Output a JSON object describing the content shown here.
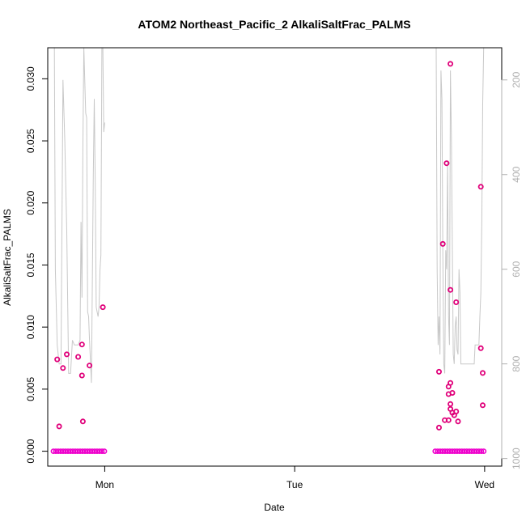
{
  "chart_data": {
    "type": "scatter",
    "title": "ATOM2 Northeast_Pacific_2 AlkaliSaltFrac_PALMS",
    "xlabel": "Date",
    "ylabel": "AlkaliSaltFrac_PALMS",
    "x_axis_unit": "days",
    "xlim": [
      -0.3,
      2.09
    ],
    "ylim": [
      -0.0012,
      0.0325
    ],
    "x_ticks": [
      {
        "value": 0,
        "label": "Mon"
      },
      {
        "value": 1,
        "label": "Tue"
      },
      {
        "value": 2,
        "label": "Wed"
      }
    ],
    "y_ticks": [
      0.0,
      0.005,
      0.01,
      0.015,
      0.02,
      0.025,
      0.03
    ],
    "y_tick_labels": [
      "0.000",
      "0.005",
      "0.010",
      "0.015",
      "0.020",
      "0.025",
      "0.030"
    ],
    "right_axis": {
      "reversed": true,
      "ylim": [
        1016,
        132
      ],
      "ticks": [
        200,
        400,
        600,
        800,
        1000
      ],
      "tick_labels": [
        "200",
        "400",
        "600",
        "800",
        "1000"
      ],
      "color": "#b0b0b0"
    },
    "grid": false,
    "legend": "none",
    "colors": {
      "points": "#e0007a",
      "zero_points": "#ee00cc",
      "altitude_line": "#c8c8c8",
      "axis": "#000000"
    },
    "zero_segments": [
      [
        -0.27,
        0.005
      ],
      [
        1.74,
        2.0
      ]
    ],
    "series": [
      {
        "values": [
          [
            -0.25,
            0.0074
          ],
          [
            -0.24,
            0.002
          ],
          [
            -0.22,
            0.0067
          ],
          [
            -0.2,
            0.0078
          ],
          [
            -0.14,
            0.0076
          ],
          [
            -0.12,
            0.0086
          ],
          [
            -0.12,
            0.0061
          ],
          [
            -0.115,
            0.0024
          ],
          [
            -0.08,
            0.0069
          ],
          [
            -0.01,
            0.0116
          ],
          [
            1.76,
            0.0064
          ],
          [
            1.76,
            0.0019
          ],
          [
            1.78,
            0.0167
          ],
          [
            1.79,
            0.0025
          ],
          [
            1.8,
            0.0232
          ],
          [
            1.82,
            0.0312
          ],
          [
            1.82,
            0.013
          ],
          [
            1.85,
            0.012
          ],
          [
            1.81,
            0.0046
          ],
          [
            1.81,
            0.0052
          ],
          [
            1.82,
            0.0055
          ],
          [
            1.83,
            0.0047
          ],
          [
            1.82,
            0.0038
          ],
          [
            1.82,
            0.0034
          ],
          [
            1.83,
            0.0031
          ],
          [
            1.84,
            0.0029
          ],
          [
            1.85,
            0.0032
          ],
          [
            1.86,
            0.0024
          ],
          [
            1.81,
            0.0025
          ],
          [
            1.98,
            0.0213
          ],
          [
            1.98,
            0.0083
          ],
          [
            1.99,
            0.0063
          ],
          [
            1.99,
            0.0037
          ]
        ]
      }
    ],
    "altitude_trace": [
      [
        -0.265,
        132
      ],
      [
        -0.26,
        600
      ],
      [
        -0.25,
        760
      ],
      [
        -0.24,
        800
      ],
      [
        -0.23,
        800
      ],
      [
        -0.22,
        200
      ],
      [
        -0.21,
        330
      ],
      [
        -0.2,
        520
      ],
      [
        -0.19,
        820
      ],
      [
        -0.18,
        820
      ],
      [
        -0.17,
        750
      ],
      [
        -0.16,
        760
      ],
      [
        -0.15,
        760
      ],
      [
        -0.14,
        760
      ],
      [
        -0.13,
        750
      ],
      [
        -0.125,
        500
      ],
      [
        -0.12,
        660
      ],
      [
        -0.115,
        350
      ],
      [
        -0.11,
        132
      ],
      [
        -0.1,
        270
      ],
      [
        -0.095,
        280
      ],
      [
        -0.09,
        690
      ],
      [
        -0.085,
        700
      ],
      [
        -0.08,
        750
      ],
      [
        -0.07,
        840
      ],
      [
        -0.06,
        400
      ],
      [
        -0.055,
        240
      ],
      [
        -0.05,
        420
      ],
      [
        -0.045,
        680
      ],
      [
        -0.04,
        690
      ],
      [
        -0.035,
        700
      ],
      [
        -0.03,
        680
      ],
      [
        -0.025,
        600
      ],
      [
        -0.02,
        570
      ],
      [
        -0.015,
        132
      ],
      [
        -0.01,
        132
      ],
      [
        -0.005,
        310
      ],
      [
        0.0,
        290
      ],
      [
        1.745,
        132
      ],
      [
        1.75,
        600
      ],
      [
        1.755,
        760
      ],
      [
        1.76,
        700
      ],
      [
        1.765,
        780
      ],
      [
        1.77,
        180
      ],
      [
        1.775,
        240
      ],
      [
        1.78,
        560
      ],
      [
        1.785,
        800
      ],
      [
        1.79,
        820
      ],
      [
        1.795,
        560
      ],
      [
        1.8,
        600
      ],
      [
        1.805,
        370
      ],
      [
        1.81,
        700
      ],
      [
        1.815,
        760
      ],
      [
        1.82,
        180
      ],
      [
        1.825,
        320
      ],
      [
        1.83,
        560
      ],
      [
        1.835,
        780
      ],
      [
        1.84,
        800
      ],
      [
        1.845,
        720
      ],
      [
        1.85,
        700
      ],
      [
        1.855,
        770
      ],
      [
        1.86,
        780
      ],
      [
        1.865,
        600
      ],
      [
        1.87,
        650
      ],
      [
        1.875,
        800
      ],
      [
        1.88,
        800
      ],
      [
        1.885,
        800
      ],
      [
        1.89,
        800
      ],
      [
        1.895,
        800
      ],
      [
        1.9,
        800
      ],
      [
        1.905,
        800
      ],
      [
        1.91,
        800
      ],
      [
        1.915,
        800
      ],
      [
        1.92,
        800
      ],
      [
        1.925,
        800
      ],
      [
        1.93,
        800
      ],
      [
        1.935,
        800
      ],
      [
        1.94,
        800
      ],
      [
        1.945,
        800
      ],
      [
        1.95,
        760
      ],
      [
        1.955,
        760
      ],
      [
        1.96,
        760
      ],
      [
        1.965,
        760
      ],
      [
        1.97,
        760
      ],
      [
        1.975,
        700
      ],
      [
        1.98,
        650
      ],
      [
        1.985,
        500
      ],
      [
        1.99,
        250
      ],
      [
        1.995,
        132
      ],
      [
        2.0,
        132
      ]
    ]
  }
}
